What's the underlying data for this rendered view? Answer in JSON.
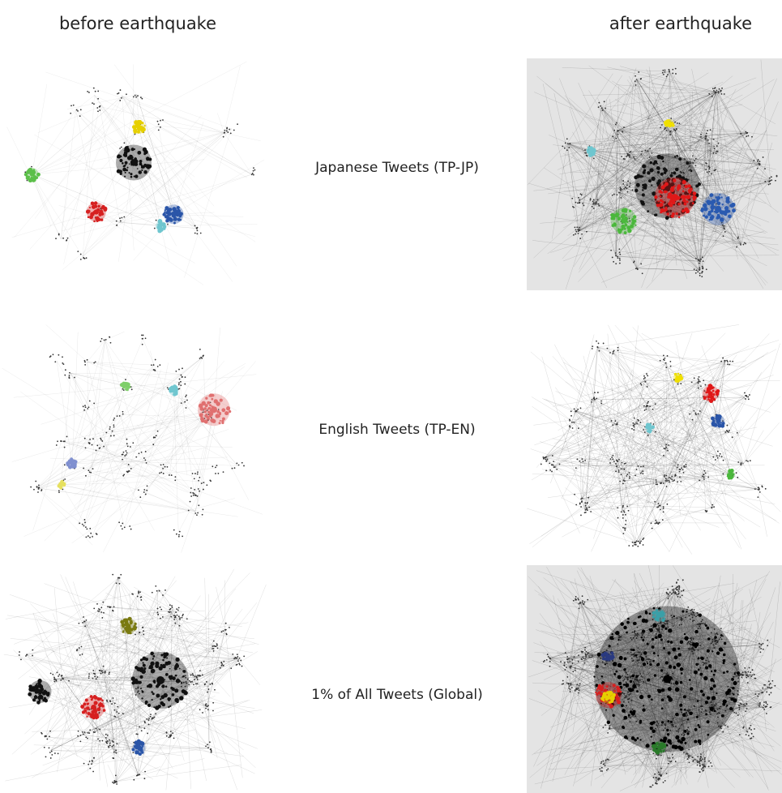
{
  "header": {
    "before": "before earthquake",
    "after": "after earthquake"
  },
  "rows": [
    {
      "label": "Japanese Tweets (TP-JP)"
    },
    {
      "label": "English Tweets (TP-EN)"
    },
    {
      "label": "1% of All Tweets (Global)"
    }
  ]
}
